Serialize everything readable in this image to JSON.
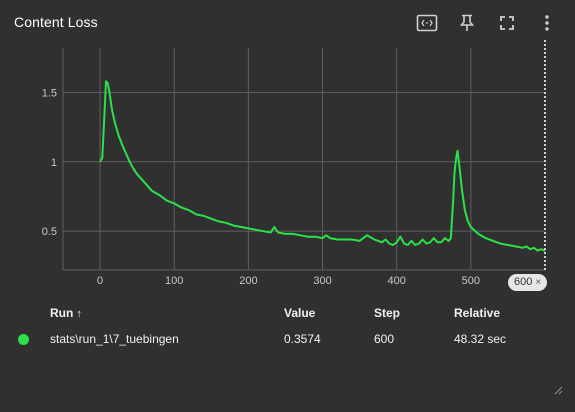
{
  "card": {
    "title": "Content Loss"
  },
  "toolbar": {
    "icons": [
      "fit-domain-icon",
      "pin-icon",
      "fullscreen-icon",
      "more-vert-icon"
    ]
  },
  "step_chip": {
    "label": "600",
    "close": "×"
  },
  "colors": {
    "series": "#2be04a",
    "grid": "#5f5f5f",
    "background": "#303030"
  },
  "table": {
    "headers": {
      "run": "Run",
      "sort_indicator": "↑",
      "value": "Value",
      "step": "Step",
      "relative": "Relative"
    },
    "rows": [
      {
        "run": "stats\\run_1\\7_tuebingen",
        "value": "0.3574",
        "step": "600",
        "relative": "48.32 sec",
        "color": "#2be04a"
      }
    ]
  },
  "chart_data": {
    "type": "line",
    "title": "Content Loss",
    "xlabel": "",
    "ylabel": "",
    "xlim": [
      -50,
      600
    ],
    "ylim": [
      0.22,
      1.82
    ],
    "x_ticks": [
      0,
      100,
      200,
      300,
      400,
      500
    ],
    "y_ticks": [
      0.5,
      1,
      1.5
    ],
    "y_tick_labels": [
      "0.5",
      "1",
      "1.5"
    ],
    "grid": true,
    "hover_step": 600,
    "series": [
      {
        "x": [
          0,
          3,
          6,
          8,
          10,
          12,
          14,
          16,
          18,
          20,
          25,
          30,
          35,
          40,
          45,
          50,
          60,
          70,
          80,
          90,
          100,
          110,
          120,
          130,
          140,
          150,
          160,
          170,
          180,
          190,
          200,
          210,
          220,
          230,
          235,
          240,
          250,
          260,
          270,
          280,
          290,
          300,
          305,
          310,
          320,
          330,
          340,
          350,
          355,
          360,
          370,
          380,
          385,
          390,
          395,
          400,
          405,
          410,
          415,
          420,
          425,
          430,
          435,
          440,
          445,
          450,
          455,
          460,
          465,
          470,
          473,
          476,
          478,
          480,
          482,
          485,
          488,
          492,
          496,
          500,
          510,
          520,
          530,
          540,
          550,
          560,
          570,
          575,
          580,
          585,
          590,
          595,
          600
        ],
        "y": [
          1.0,
          1.03,
          1.35,
          1.58,
          1.57,
          1.52,
          1.45,
          1.38,
          1.33,
          1.28,
          1.19,
          1.12,
          1.06,
          1.0,
          0.95,
          0.91,
          0.85,
          0.79,
          0.76,
          0.72,
          0.7,
          0.67,
          0.65,
          0.62,
          0.61,
          0.59,
          0.57,
          0.56,
          0.54,
          0.53,
          0.52,
          0.51,
          0.5,
          0.49,
          0.53,
          0.49,
          0.48,
          0.48,
          0.47,
          0.46,
          0.46,
          0.45,
          0.47,
          0.45,
          0.44,
          0.44,
          0.44,
          0.43,
          0.45,
          0.47,
          0.44,
          0.42,
          0.44,
          0.41,
          0.4,
          0.42,
          0.46,
          0.41,
          0.4,
          0.43,
          0.4,
          0.41,
          0.44,
          0.41,
          0.42,
          0.45,
          0.42,
          0.42,
          0.45,
          0.43,
          0.45,
          0.7,
          0.92,
          1.02,
          1.08,
          0.95,
          0.8,
          0.65,
          0.57,
          0.53,
          0.48,
          0.45,
          0.43,
          0.41,
          0.4,
          0.39,
          0.38,
          0.39,
          0.37,
          0.38,
          0.36,
          0.37,
          0.3574
        ]
      }
    ]
  }
}
